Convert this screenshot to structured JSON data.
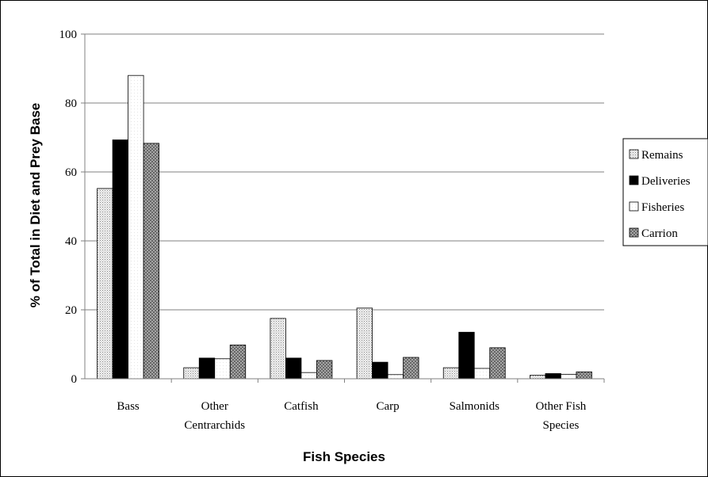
{
  "chart_data": {
    "type": "bar",
    "title": "",
    "xlabel": "Fish Species",
    "ylabel": "% of Total in Diet and Prey Base",
    "categories": [
      [
        "Bass"
      ],
      [
        "Other",
        "Centrarchids"
      ],
      [
        "Catfish"
      ],
      [
        "Carp"
      ],
      [
        "Salmonids"
      ],
      [
        "Other Fish",
        "Species"
      ]
    ],
    "series": [
      {
        "name": "Remains",
        "pattern": "dots-light",
        "values": [
          55.2,
          3.2,
          17.5,
          20.5,
          3.2,
          1.0
        ]
      },
      {
        "name": "Deliveries",
        "pattern": "solid-black",
        "values": [
          69.3,
          6.0,
          6.0,
          4.8,
          13.5,
          1.5
        ]
      },
      {
        "name": "Fisheries",
        "pattern": "white",
        "values": [
          88.0,
          5.8,
          1.8,
          1.2,
          3.0,
          1.3
        ]
      },
      {
        "name": "Carrion",
        "pattern": "crosshatch",
        "values": [
          68.3,
          9.8,
          5.3,
          6.2,
          9.0,
          2.0
        ]
      }
    ],
    "ylim": [
      0,
      100
    ],
    "yticks": [
      0,
      20,
      40,
      60,
      80,
      100
    ],
    "grid": true,
    "legend_position": "right"
  }
}
